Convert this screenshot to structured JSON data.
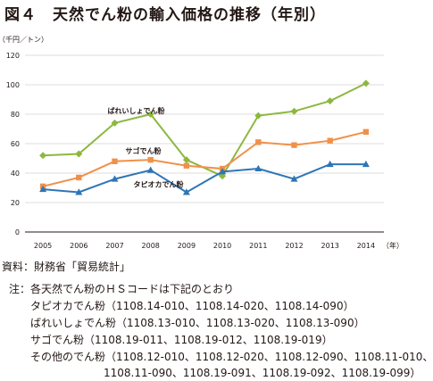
{
  "title": "図４　天然でん粉の輸入価格の推移（年別）",
  "chart_data": {
    "type": "line",
    "x": [
      "2005",
      "2006",
      "2007",
      "2008",
      "2009",
      "2010",
      "2011",
      "2012",
      "2013",
      "2014"
    ],
    "ylabel": "（千円／トン）",
    "xunit": "（年）",
    "ylim": [
      0,
      120
    ],
    "yticks": [
      0,
      20,
      40,
      60,
      80,
      100,
      120
    ],
    "grid": true,
    "series": [
      {
        "name": "ばれいしょでん粉",
        "color": "#8DB83F",
        "marker": "diamond",
        "values": [
          52,
          53,
          74,
          80,
          49,
          38,
          79,
          82,
          89,
          101
        ]
      },
      {
        "name": "サゴでん粉",
        "color": "#F0914A",
        "marker": "square",
        "values": [
          31,
          37,
          48,
          49,
          45,
          43,
          61,
          59,
          62,
          68
        ]
      },
      {
        "name": "タピオカでん粉",
        "color": "#2E75B6",
        "marker": "triangle",
        "values": [
          29,
          27,
          36,
          42,
          27,
          41,
          43,
          36,
          46,
          46
        ]
      }
    ]
  },
  "notes": {
    "source": "資料：財務省「貿易統計」",
    "note_header": "注：各天然でん粉のＨＳコードは下記のとおり",
    "tapioca": "タピオカでん粉（1108.14-010、1108.14-020、1108.14-090）",
    "potato": "ばれいしょでん粉（1108.13-010、1108.13-020、1108.13-090）",
    "sago": "サゴでん粉（1108.19-011、1108.19-012、1108.19-019）",
    "other": "その他のでん粉（1108.12-010、1108.12-020、1108.12-090、1108.11-010、",
    "other_cont": "1108.11-090、1108.19-091、1108.19-092、1108.19-099）"
  }
}
